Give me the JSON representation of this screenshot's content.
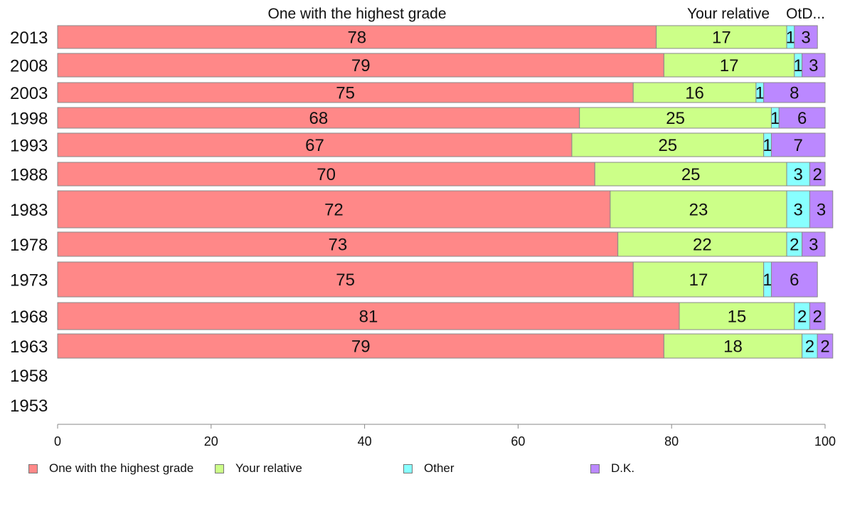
{
  "chart_data": {
    "type": "bar",
    "orientation": "horizontal",
    "stacked": true,
    "categories": [
      "2013",
      "2008",
      "2003",
      "1998",
      "1993",
      "1988",
      "1983",
      "1978",
      "1973",
      "1968",
      "1963",
      "1958",
      "1953"
    ],
    "series": [
      {
        "name": "One with the highest grade",
        "color": "#ff8888",
        "values": [
          78,
          79,
          75,
          68,
          67,
          70,
          72,
          73,
          75,
          81,
          79,
          null,
          null
        ]
      },
      {
        "name": "Your relative",
        "color": "#ccff88",
        "values": [
          17,
          17,
          16,
          25,
          25,
          25,
          23,
          22,
          17,
          15,
          18,
          null,
          null
        ]
      },
      {
        "name": "Other",
        "color": "#88ffff",
        "values": [
          1,
          1,
          1,
          1,
          1,
          3,
          3,
          2,
          1,
          2,
          2,
          null,
          null
        ]
      },
      {
        "name": "D.K.",
        "color": "#bb88ff",
        "values": [
          3,
          3,
          8,
          6,
          7,
          2,
          3,
          3,
          6,
          2,
          2,
          null,
          null
        ]
      }
    ],
    "header_labels": [
      "One with the highest grade",
      "Your relative",
      "OtD..."
    ],
    "xlim": [
      0,
      100
    ],
    "xticks": [
      0,
      20,
      40,
      60,
      80,
      100
    ],
    "legend_position": "bottom",
    "grid": false
  }
}
